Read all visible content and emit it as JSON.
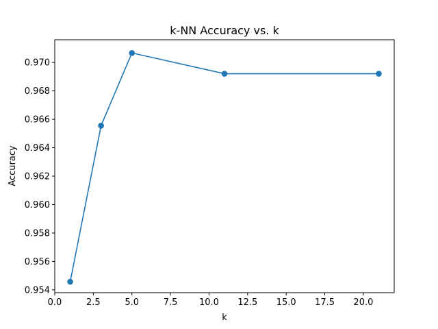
{
  "chart_data": {
    "type": "line",
    "title": "k-NN Accuracy vs. k",
    "xlabel": "k",
    "ylabel": "Accuracy",
    "x": [
      1,
      3,
      5,
      11,
      21
    ],
    "series": [
      {
        "values": [
          0.95457,
          0.96555,
          0.97067,
          0.96921,
          0.96921
        ]
      }
    ],
    "xlim": [
      0.0,
      22.0
    ],
    "ylim": [
      0.9538,
      0.9716
    ],
    "xticks": [
      0.0,
      2.5,
      5.0,
      7.5,
      10.0,
      12.5,
      15.0,
      17.5,
      20.0
    ],
    "xtick_labels": [
      "0.0",
      "2.5",
      "5.0",
      "7.5",
      "10.0",
      "12.5",
      "15.0",
      "17.5",
      "20.0"
    ],
    "yticks": [
      0.954,
      0.956,
      0.958,
      0.96,
      0.962,
      0.964,
      0.966,
      0.968,
      0.97
    ],
    "ytick_labels": [
      "0.954",
      "0.956",
      "0.958",
      "0.960",
      "0.962",
      "0.964",
      "0.966",
      "0.968",
      "0.970"
    ],
    "grid": false,
    "marker": "circle",
    "line_color": "#1f77b4"
  }
}
